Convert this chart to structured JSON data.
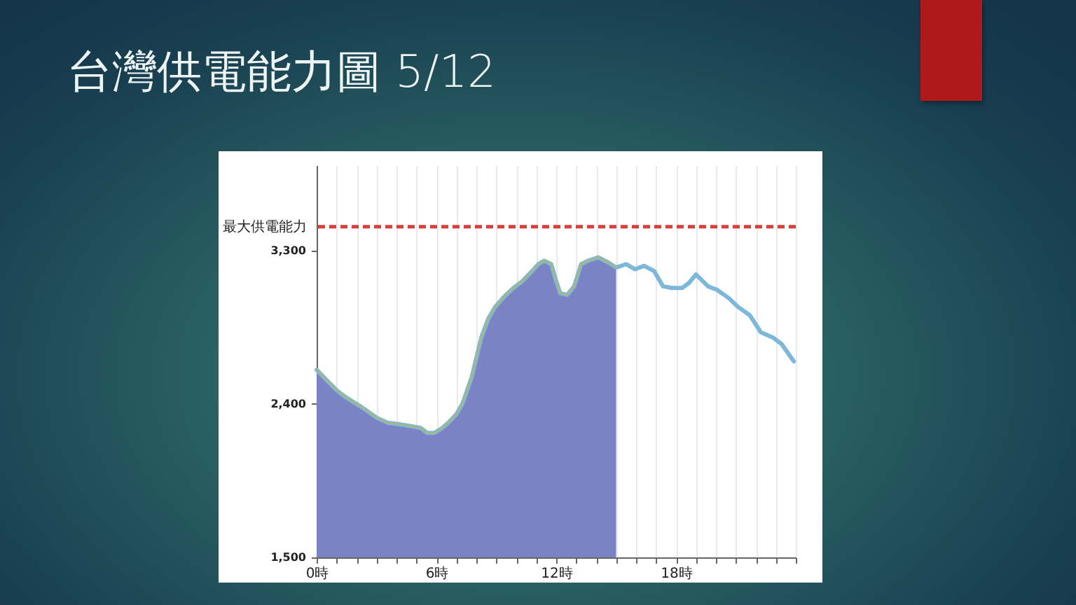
{
  "chart_data": {
    "type": "line",
    "title": "台灣供電能力圖 5/12",
    "xlim": [
      0,
      24
    ],
    "xticks": [
      {
        "value": 0,
        "label": "0時"
      },
      {
        "value": 1,
        "label": null
      },
      {
        "value": 2,
        "label": null
      },
      {
        "value": 3,
        "label": null
      },
      {
        "value": 4,
        "label": null
      },
      {
        "value": 5,
        "label": null
      },
      {
        "value": 6,
        "label": "6時"
      },
      {
        "value": 7,
        "label": null
      },
      {
        "value": 8,
        "label": null
      },
      {
        "value": 9,
        "label": null
      },
      {
        "value": 10,
        "label": null
      },
      {
        "value": 11,
        "label": null
      },
      {
        "value": 12,
        "label": "12時"
      },
      {
        "value": 13,
        "label": null
      },
      {
        "value": 14,
        "label": null
      },
      {
        "value": 15,
        "label": null
      },
      {
        "value": 16,
        "label": null
      },
      {
        "value": 17,
        "label": null
      },
      {
        "value": 18,
        "label": "18時"
      },
      {
        "value": 19,
        "label": null
      },
      {
        "value": 20,
        "label": null
      },
      {
        "value": 21,
        "label": null
      },
      {
        "value": 22,
        "label": null
      },
      {
        "value": 23,
        "label": null
      },
      {
        "value": 24,
        "label": null
      }
    ],
    "ylim": [
      1500,
      3800
    ],
    "yticks": [
      {
        "value": 1500,
        "label": "1,500"
      },
      {
        "value": 2400,
        "label": "2,400"
      },
      {
        "value": 3300,
        "label": "3,300"
      }
    ],
    "grid": "x",
    "ref_lines": [
      {
        "axis": "y",
        "value": 3440,
        "label": "最大供電能力",
        "color": "#d8403a",
        "line_style": "dashed"
      }
    ],
    "series": [
      {
        "type": "area",
        "color": "#7c83c4",
        "x": [
          0,
          0.5,
          1,
          1.45,
          2,
          2.4,
          3,
          3.55,
          4.2,
          4.7,
          5.2,
          5.55,
          5.9,
          6.3,
          6.6,
          7,
          7.3,
          7.75,
          8.25,
          8.6,
          8.95,
          9.4,
          9.85,
          10.3,
          10.8,
          11.1,
          11.4,
          11.75,
          12,
          12.2,
          12.55,
          12.9,
          13.25,
          13.6,
          14.1,
          14.6,
          15
        ],
        "values": [
          2600,
          2540,
          2480,
          2440,
          2400,
          2370,
          2320,
          2290,
          2280,
          2270,
          2260,
          2230,
          2230,
          2260,
          2290,
          2340,
          2400,
          2550,
          2790,
          2900,
          2970,
          3030,
          3080,
          3120,
          3180,
          3220,
          3240,
          3220,
          3120,
          3050,
          3040,
          3090,
          3220,
          3240,
          3260,
          3230,
          3200
        ]
      },
      {
        "color": "#7db8da",
        "x": [
          0,
          0.5,
          1,
          1.45,
          2,
          2.4,
          3,
          3.55,
          4.2,
          4.7,
          5.2,
          5.55,
          5.9,
          6.3,
          6.6,
          7,
          7.3,
          7.75,
          8.25,
          8.6,
          8.95,
          9.4,
          9.85,
          10.3,
          10.8,
          11.1,
          11.4,
          11.75,
          12,
          12.2,
          12.55,
          12.9,
          13.25,
          13.6,
          14.1,
          14.6,
          15,
          15.5,
          15.95,
          16.4,
          16.9,
          17.35,
          17.8,
          18.3,
          18.65,
          19,
          19.6,
          20.05,
          20.65,
          21.1,
          21.7,
          22.25,
          22.85,
          23.3,
          23.9
        ],
        "values": [
          2600,
          2540,
          2480,
          2440,
          2400,
          2370,
          2320,
          2290,
          2280,
          2270,
          2260,
          2230,
          2230,
          2260,
          2290,
          2340,
          2400,
          2550,
          2790,
          2900,
          2970,
          3030,
          3080,
          3120,
          3180,
          3220,
          3240,
          3220,
          3120,
          3050,
          3040,
          3090,
          3220,
          3240,
          3260,
          3230,
          3200,
          3220,
          3190,
          3210,
          3180,
          3090,
          3080,
          3080,
          3110,
          3160,
          3090,
          3070,
          3020,
          2970,
          2920,
          2820,
          2790,
          2750,
          2650
        ]
      },
      {
        "color": "#a9b77e",
        "x": [
          0,
          0.5,
          1,
          1.45,
          2,
          2.4,
          3,
          3.55,
          4.2,
          4.7,
          5.2,
          5.55,
          5.9,
          6.3,
          6.6,
          7,
          7.3,
          7.75,
          8.25,
          8.6,
          8.95,
          9.4,
          9.85,
          10.3,
          10.8,
          11.1,
          11.4,
          11.75,
          12,
          12.2,
          12.55,
          12.9,
          13.25,
          13.6,
          14.1,
          14.6,
          15
        ],
        "values": [
          2600,
          2540,
          2480,
          2440,
          2400,
          2370,
          2320,
          2290,
          2280,
          2270,
          2260,
          2230,
          2230,
          2260,
          2290,
          2340,
          2400,
          2550,
          2790,
          2900,
          2970,
          3030,
          3080,
          3120,
          3180,
          3220,
          3240,
          3220,
          3120,
          3050,
          3040,
          3090,
          3220,
          3240,
          3260,
          3230,
          3200
        ]
      }
    ]
  }
}
